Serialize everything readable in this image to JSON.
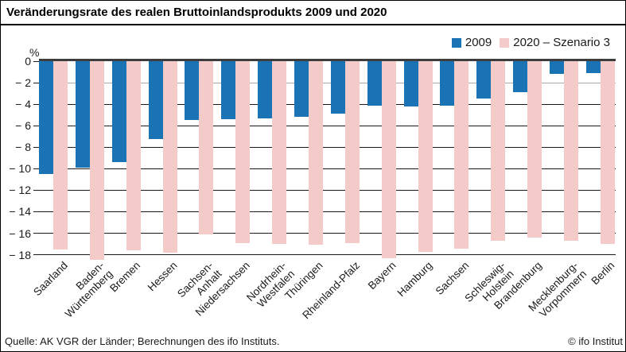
{
  "title": "Veränderungsrate des realen Bruttoinlandsprodukts 2009 und 2020",
  "unit_label": "%",
  "footer": {
    "source": "Quelle: AK VGR der Länder; Berechnungen des ifo Instituts.",
    "copyright": "© ifo Institut"
  },
  "colors": {
    "bar_2009": "#1a73b5",
    "bar_2020": "#f5cbc9",
    "gridline": "#1a1a1a",
    "gridline_minus2": "#a8a8a8",
    "zero_line": "#3d3d3d",
    "title_rule": "#000000",
    "text": "#1a1a1a"
  },
  "chart_data": {
    "type": "bar",
    "title": "Veränderungsrate des realen Bruttoinlandsprodukts 2009 und 2020",
    "xlabel": "",
    "ylabel": "%",
    "ylim": [
      -19,
      0
    ],
    "yticks": [
      0,
      -2,
      -4,
      -6,
      -8,
      -10,
      -12,
      -14,
      -16,
      -18
    ],
    "yticklabels": [
      "0",
      "− 2",
      "− 4",
      "− 6",
      "− 8",
      "− 10",
      "− 12",
      "− 14",
      "− 16",
      "− 18"
    ],
    "grid": true,
    "legend_position": "top-right",
    "categories": [
      "Saarland",
      "Baden-\nWürttemberg",
      "Bremen",
      "Hessen",
      "Sachsen-\nAnhalt",
      "Niedersachsen",
      "Nordrhein-\nWestfalen",
      "Thüringen",
      "Rheinland-Pfalz",
      "Bayern",
      "Hamburg",
      "Sachsen",
      "Schleswig-\nHolstein",
      "Brandenburg",
      "Mecklenburg-\nVorpommern",
      "Berlin"
    ],
    "series": [
      {
        "name": "2009",
        "color": "#1a73b5",
        "values": [
          -10.5,
          -9.9,
          -9.4,
          -7.2,
          -5.5,
          -5.4,
          -5.3,
          -5.2,
          -4.9,
          -4.1,
          -4.2,
          -4.1,
          -3.5,
          -2.9,
          -1.2,
          -1.1
        ]
      },
      {
        "name": "2020 – Szenario 3",
        "color": "#f5cbc9",
        "values": [
          -17.5,
          -18.5,
          -17.6,
          -17.8,
          -16.1,
          -16.9,
          -17.0,
          -17.1,
          -16.9,
          -18.3,
          -17.7,
          -17.4,
          -16.7,
          -16.4,
          -16.7,
          -17.0
        ]
      }
    ]
  }
}
